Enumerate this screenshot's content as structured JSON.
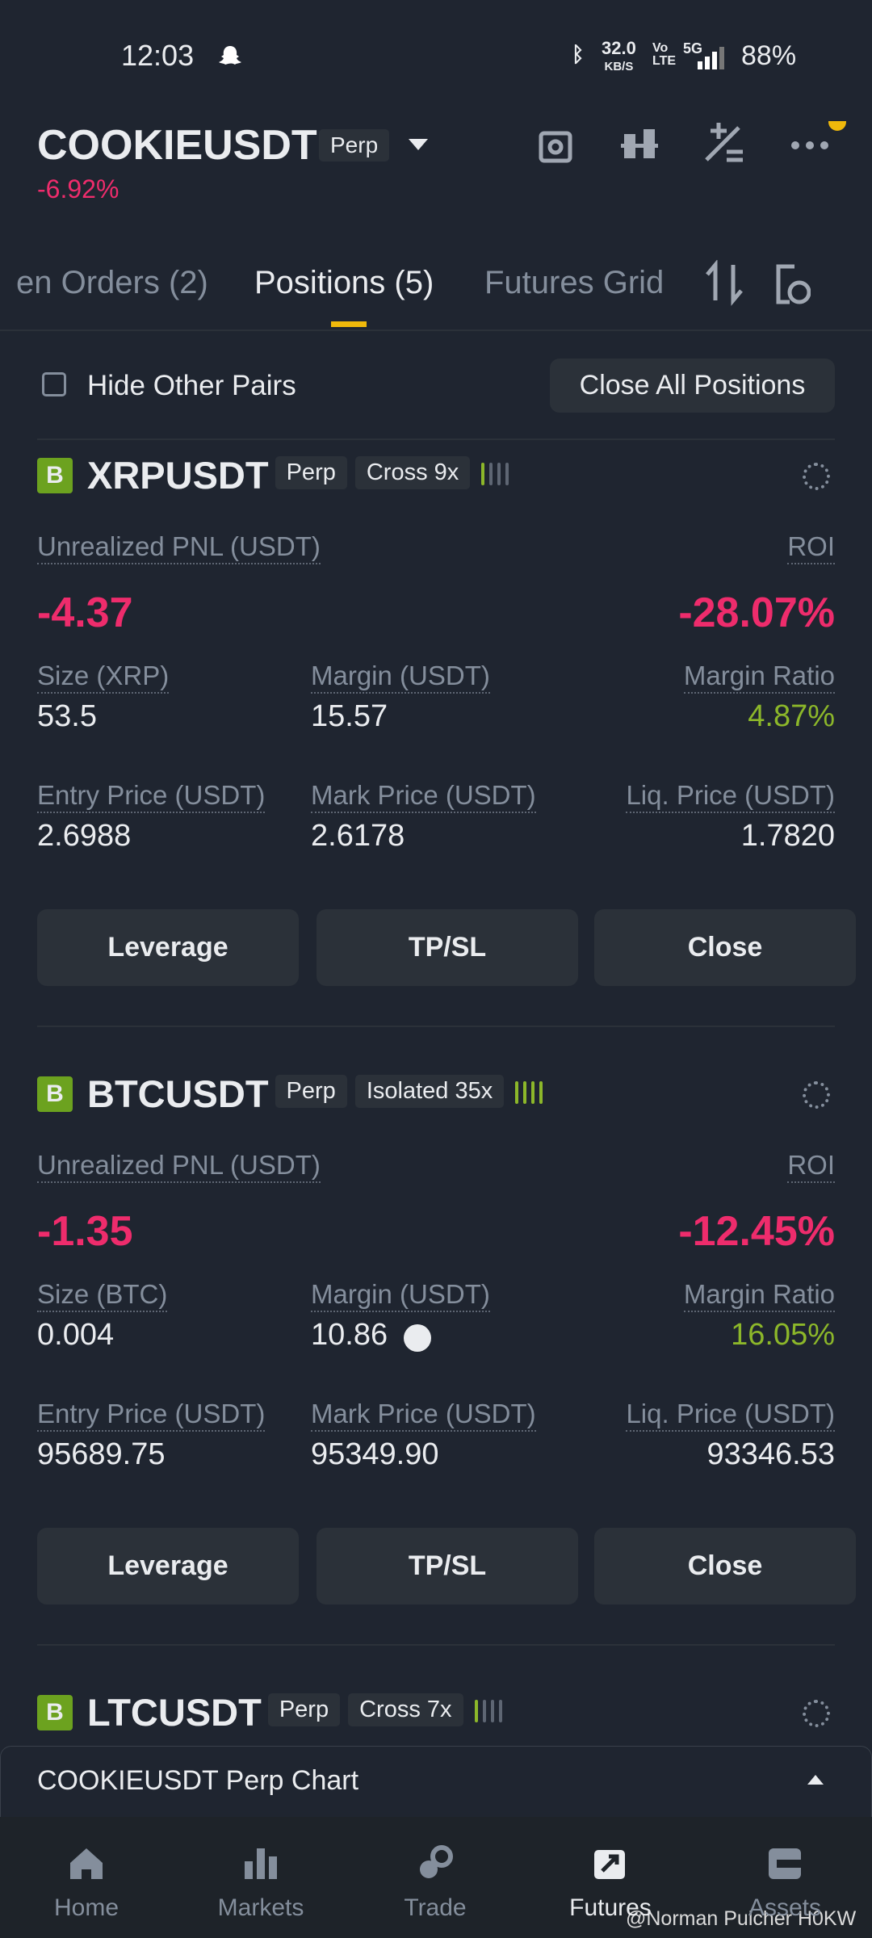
{
  "status_bar": {
    "time": "12:03",
    "net_speed": "32.0",
    "net_unit": "KB/S",
    "network": "5G",
    "battery": "88%"
  },
  "header": {
    "symbol": "COOKIEUSDT",
    "tag": "Perp",
    "change": "-6.92%"
  },
  "tabs": [
    "en Orders (2)",
    "Positions (5)",
    "Futures Grid"
  ],
  "filter": {
    "hide_label": "Hide Other Pairs",
    "close_all": "Close All Positions"
  },
  "positions": [
    {
      "side": "B",
      "symbol": "XRPUSDT",
      "type": "Perp",
      "margin_mode": "Cross 9x",
      "pnl_label": "Unrealized PNL (USDT)",
      "pnl": "-4.37",
      "roi_label": "ROI",
      "roi": "-28.07%",
      "size_label": "Size (XRP)",
      "size": "53.5",
      "margin_label": "Margin (USDT)",
      "margin": "15.57",
      "ratio_label": "Margin Ratio",
      "ratio": "4.87%",
      "entry_label": "Entry Price (USDT)",
      "entry": "2.6988",
      "mark_label": "Mark Price (USDT)",
      "mark": "2.6178",
      "liq_label": "Liq. Price (USDT)",
      "liq": "1.7820",
      "buttons": [
        "Leverage",
        "TP/SL",
        "Close"
      ]
    },
    {
      "side": "B",
      "symbol": "BTCUSDT",
      "type": "Perp",
      "margin_mode": "Isolated 35x",
      "pnl_label": "Unrealized PNL (USDT)",
      "pnl": "-1.35",
      "roi_label": "ROI",
      "roi": "-12.45%",
      "size_label": "Size (BTC)",
      "size": "0.004",
      "margin_label": "Margin (USDT)",
      "margin": "10.86",
      "ratio_label": "Margin Ratio",
      "ratio": "16.05%",
      "entry_label": "Entry Price (USDT)",
      "entry": "95689.75",
      "mark_label": "Mark Price (USDT)",
      "mark": "95349.90",
      "liq_label": "Liq. Price (USDT)",
      "liq": "93346.53",
      "buttons": [
        "Leverage",
        "TP/SL",
        "Close"
      ]
    },
    {
      "side": "B",
      "symbol": "LTCUSDT",
      "type": "Perp",
      "margin_mode": "Cross 7x"
    }
  ],
  "chart_bar": "COOKIEUSDT Perp Chart",
  "nav": [
    "Home",
    "Markets",
    "Trade",
    "Futures",
    "Assets"
  ],
  "watermark": "@Norman Pulcher H0KW"
}
